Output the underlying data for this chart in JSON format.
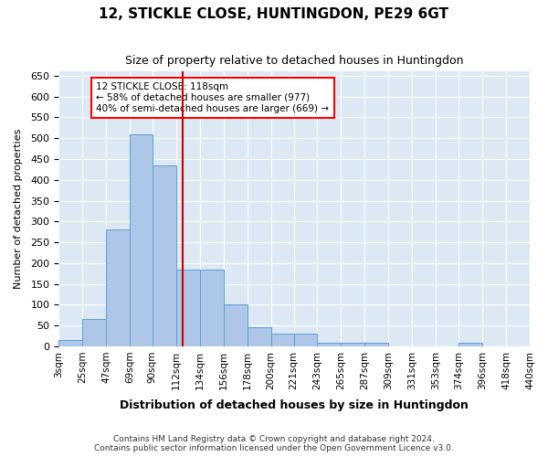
{
  "title1": "12, STICKLE CLOSE, HUNTINGDON, PE29 6GT",
  "title2": "Size of property relative to detached houses in Huntingdon",
  "xlabel": "Distribution of detached houses by size in Huntingdon",
  "ylabel": "Number of detached properties",
  "footnote1": "Contains HM Land Registry data © Crown copyright and database right 2024.",
  "footnote2": "Contains public sector information licensed under the Open Government Licence v3.0.",
  "annotation_line1": "12 STICKLE CLOSE: 118sqm",
  "annotation_line2": "← 58% of detached houses are smaller (977)",
  "annotation_line3": "40% of semi-detached houses are larger (669) →",
  "bar_color": "#aec6e8",
  "bar_edge_color": "#5a9fd4",
  "bg_color": "#dce9f5",
  "marker_color": "#cc0000",
  "property_sqm": 118,
  "bin_edges": [
    3,
    25,
    47,
    69,
    90,
    112,
    134,
    156,
    178,
    200,
    221,
    243,
    265,
    287,
    309,
    331,
    353,
    374,
    396,
    418,
    440
  ],
  "bin_labels": [
    "3sqm",
    "25sqm",
    "47sqm",
    "69sqm",
    "90sqm",
    "112sqm",
    "134sqm",
    "156sqm",
    "178sqm",
    "200sqm",
    "221sqm",
    "243sqm",
    "265sqm",
    "287sqm",
    "309sqm",
    "331sqm",
    "353sqm",
    "374sqm",
    "396sqm",
    "418sqm",
    "440sqm"
  ],
  "bar_heights": [
    15,
    65,
    280,
    510,
    435,
    185,
    185,
    100,
    45,
    30,
    30,
    8,
    8,
    8,
    0,
    0,
    0,
    8,
    0,
    0
  ],
  "ylim": [
    0,
    660
  ],
  "yticks": [
    0,
    50,
    100,
    150,
    200,
    250,
    300,
    350,
    400,
    450,
    500,
    550,
    600,
    650
  ]
}
